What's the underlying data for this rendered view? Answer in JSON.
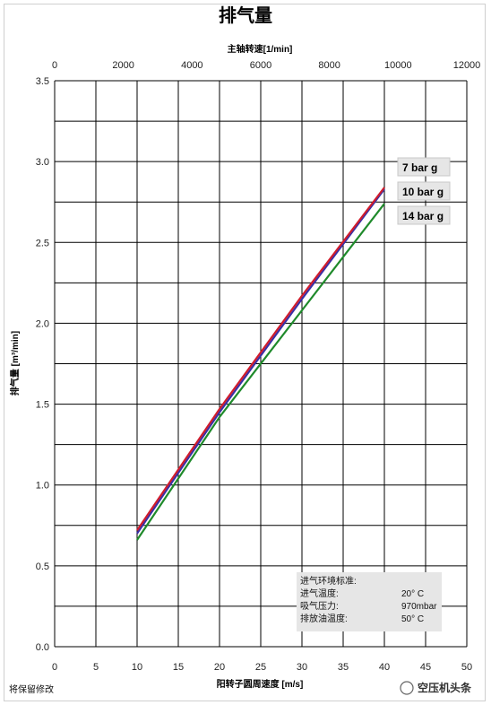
{
  "chart_data": {
    "type": "line",
    "title": "排气量",
    "top_axis": {
      "label": "主轴转速[1/min]",
      "range": [
        0,
        12000
      ],
      "ticks": [
        "0",
        "2000",
        "4000",
        "6000",
        "8000",
        "10000",
        "12000"
      ]
    },
    "xlabel": "阳转子圆周速度 [m/s]",
    "ylabel": "排气量 [m³/min]",
    "xlim": [
      0,
      50
    ],
    "ylim": [
      0,
      3.5
    ],
    "xticks": [
      "0",
      "5",
      "10",
      "15",
      "20",
      "25",
      "30",
      "35",
      "40",
      "45",
      "50"
    ],
    "yticks": [
      "0.0",
      "0.5",
      "1.0",
      "1.5",
      "2.0",
      "2.5",
      "3.0",
      "3.5"
    ],
    "grid": true,
    "series": [
      {
        "name": "7 bar g",
        "color": "#d01c2c",
        "x": [
          10,
          20,
          30,
          40
        ],
        "y": [
          0.72,
          1.47,
          2.17,
          2.84
        ]
      },
      {
        "name": "10 bar g",
        "color": "#3a2fa6",
        "x": [
          10,
          20,
          30,
          40
        ],
        "y": [
          0.7,
          1.45,
          2.15,
          2.83
        ]
      },
      {
        "name": "14 bar g",
        "color": "#1f8a2b",
        "x": [
          10,
          20,
          30,
          40
        ],
        "y": [
          0.66,
          1.42,
          2.08,
          2.74
        ]
      }
    ],
    "conditions": {
      "heading": "进气环境标准:",
      "rows": [
        {
          "label": "进气温度:",
          "value": "20° C"
        },
        {
          "label": "吸气压力:",
          "value": "970mbar"
        },
        {
          "label": "排放油温度:",
          "value": "50° C"
        }
      ]
    },
    "footnote": "将保留修改",
    "watermark": "空压机头条"
  }
}
